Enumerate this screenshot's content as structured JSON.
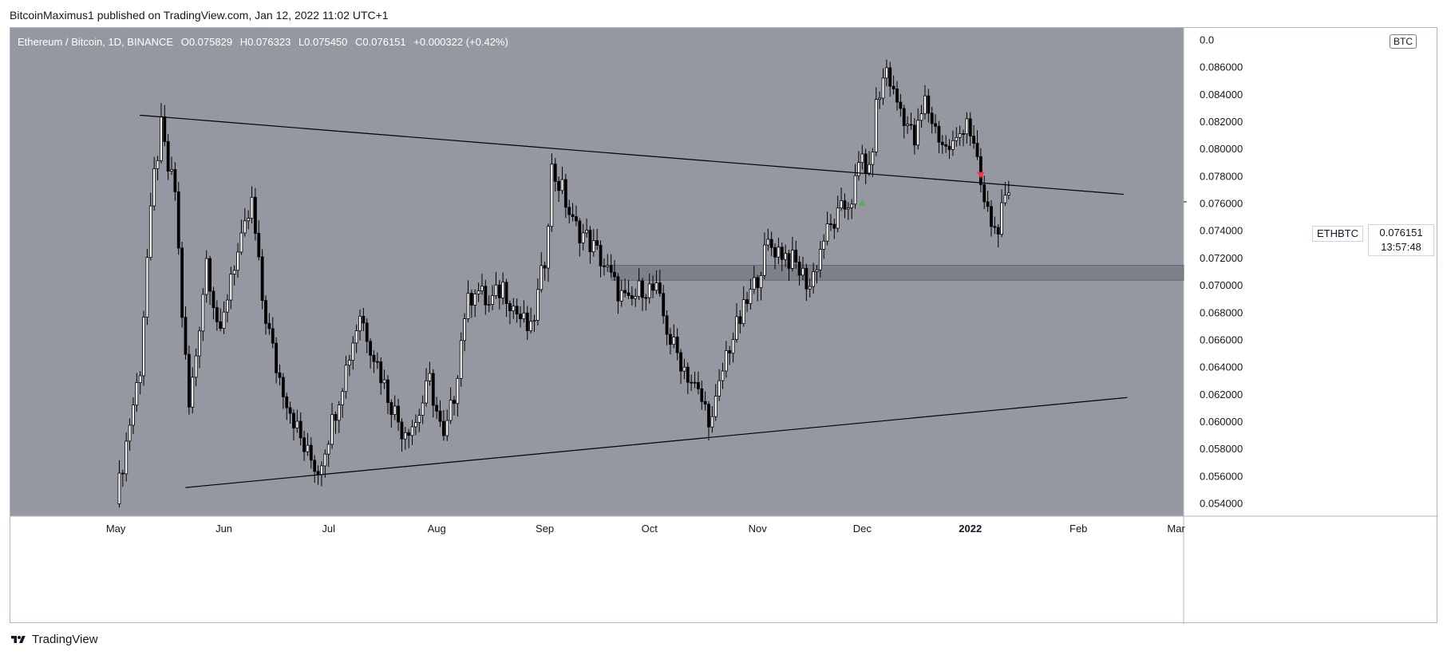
{
  "publish": {
    "author": "BitcoinMaximus1",
    "text": "BitcoinMaximus1 published on TradingView.com, Jan 12, 2022 11:02 UTC+1"
  },
  "footer": {
    "brand": "TradingView"
  },
  "symbol": {
    "title": "Ethereum / Bitcoin, 1D, BINANCE",
    "open_key": "O",
    "open": "0.075829",
    "high_key": "H",
    "high": "0.076323",
    "low_key": "L",
    "low": "0.075450",
    "close_key": "C",
    "close": "0.076151",
    "change": "+0.000322 (+0.42%)",
    "ticker": "ETHBTC",
    "last_price": "0.076151",
    "countdown": "13:57:48",
    "currency": "BTC"
  },
  "colors": {
    "plot_background": "#9598a1",
    "candle": "#000000",
    "candle_up_body": "#ffffff",
    "support_zone": "#7b7e87",
    "sell_marker": "#f23645",
    "buy_marker": "#4caf50"
  },
  "chart_data": {
    "type": "candlestick",
    "x_axis": [
      "May",
      "Jun",
      "Jul",
      "Aug",
      "Sep",
      "Oct",
      "Nov",
      "Dec",
      "2022",
      "Feb",
      "Mar"
    ],
    "y_axis_ticks": [
      "0.054000",
      "0.056000",
      "0.058000",
      "0.060000",
      "0.062000",
      "0.064000",
      "0.066000",
      "0.068000",
      "0.070000",
      "0.072000",
      "0.074000",
      "0.076000",
      "0.078000",
      "0.080000",
      "0.082000",
      "0.084000",
      "0.086000",
      "0.0"
    ],
    "ylim": [
      0.0531,
      0.0889
    ],
    "grid": false,
    "series_close": [
      [
        "2021-05-01",
        0.054
      ],
      [
        "2021-05-05",
        0.06
      ],
      [
        "2021-05-08",
        0.064
      ],
      [
        "2021-05-10",
        0.072
      ],
      [
        "2021-05-12",
        0.078
      ],
      [
        "2021-05-14",
        0.0815
      ],
      [
        "2021-05-16",
        0.0785
      ],
      [
        "2021-05-18",
        0.077
      ],
      [
        "2021-05-20",
        0.068
      ],
      [
        "2021-05-22",
        0.061
      ],
      [
        "2021-05-24",
        0.065
      ],
      [
        "2021-05-27",
        0.072
      ],
      [
        "2021-05-31",
        0.066
      ],
      [
        "2021-06-03",
        0.071
      ],
      [
        "2021-06-06",
        0.073
      ],
      [
        "2021-06-09",
        0.076
      ],
      [
        "2021-06-12",
        0.069
      ],
      [
        "2021-06-16",
        0.064
      ],
      [
        "2021-06-20",
        0.061
      ],
      [
        "2021-06-24",
        0.058
      ],
      [
        "2021-06-28",
        0.0565
      ],
      [
        "2021-07-02",
        0.06
      ],
      [
        "2021-07-06",
        0.064
      ],
      [
        "2021-07-10",
        0.068
      ],
      [
        "2021-07-14",
        0.065
      ],
      [
        "2021-07-18",
        0.062
      ],
      [
        "2021-07-22",
        0.0595
      ],
      [
        "2021-07-26",
        0.06
      ],
      [
        "2021-07-30",
        0.063
      ],
      [
        "2021-08-03",
        0.0585
      ],
      [
        "2021-08-06",
        0.062
      ],
      [
        "2021-08-09",
        0.068
      ],
      [
        "2021-08-12",
        0.07
      ],
      [
        "2021-08-16",
        0.0685
      ],
      [
        "2021-08-20",
        0.07
      ],
      [
        "2021-08-24",
        0.068
      ],
      [
        "2021-08-28",
        0.0665
      ],
      [
        "2021-09-01",
        0.072
      ],
      [
        "2021-09-03",
        0.0785
      ],
      [
        "2021-09-06",
        0.077
      ],
      [
        "2021-09-09",
        0.0745
      ],
      [
        "2021-09-13",
        0.0735
      ],
      [
        "2021-09-17",
        0.072
      ],
      [
        "2021-09-21",
        0.07
      ],
      [
        "2021-09-25",
        0.0685
      ],
      [
        "2021-09-29",
        0.07
      ],
      [
        "2021-10-03",
        0.0695
      ],
      [
        "2021-10-07",
        0.066
      ],
      [
        "2021-10-11",
        0.064
      ],
      [
        "2021-10-15",
        0.062
      ],
      [
        "2021-10-19",
        0.06
      ],
      [
        "2021-10-23",
        0.065
      ],
      [
        "2021-10-27",
        0.0675
      ],
      [
        "2021-10-31",
        0.07
      ],
      [
        "2021-11-04",
        0.073
      ],
      [
        "2021-11-08",
        0.0725
      ],
      [
        "2021-11-12",
        0.0715
      ],
      [
        "2021-11-16",
        0.07
      ],
      [
        "2021-11-20",
        0.0735
      ],
      [
        "2021-11-24",
        0.075
      ],
      [
        "2021-11-28",
        0.0765
      ],
      [
        "2021-12-01",
        0.0795
      ],
      [
        "2021-12-03",
        0.078
      ],
      [
        "2021-12-05",
        0.083
      ],
      [
        "2021-12-08",
        0.086
      ],
      [
        "2021-12-10",
        0.084
      ],
      [
        "2021-12-13",
        0.0825
      ],
      [
        "2021-12-16",
        0.0805
      ],
      [
        "2021-12-19",
        0.0835
      ],
      [
        "2021-12-22",
        0.0815
      ],
      [
        "2021-12-25",
        0.08
      ],
      [
        "2021-12-28",
        0.0805
      ],
      [
        "2021-12-31",
        0.0825
      ],
      [
        "2022-01-02",
        0.08
      ],
      [
        "2022-01-05",
        0.076
      ],
      [
        "2022-01-08",
        0.074
      ],
      [
        "2022-01-11",
        0.0758
      ],
      [
        "2022-01-12",
        0.076151
      ]
    ],
    "annotations": {
      "descending_trendline": [
        [
          "2021-05-01",
          0.0825
        ],
        [
          "2022-02-14",
          0.0767
        ]
      ],
      "ascending_trendline": [
        [
          "2021-05-21",
          0.0552
        ],
        [
          "2022-02-15",
          0.0618
        ]
      ],
      "support_zone": [
        0.0704,
        0.0715
      ],
      "buy_marker": [
        "2021-12-01",
        0.0761
      ],
      "sell_marker": [
        "2022-01-04",
        0.0781
      ]
    }
  }
}
